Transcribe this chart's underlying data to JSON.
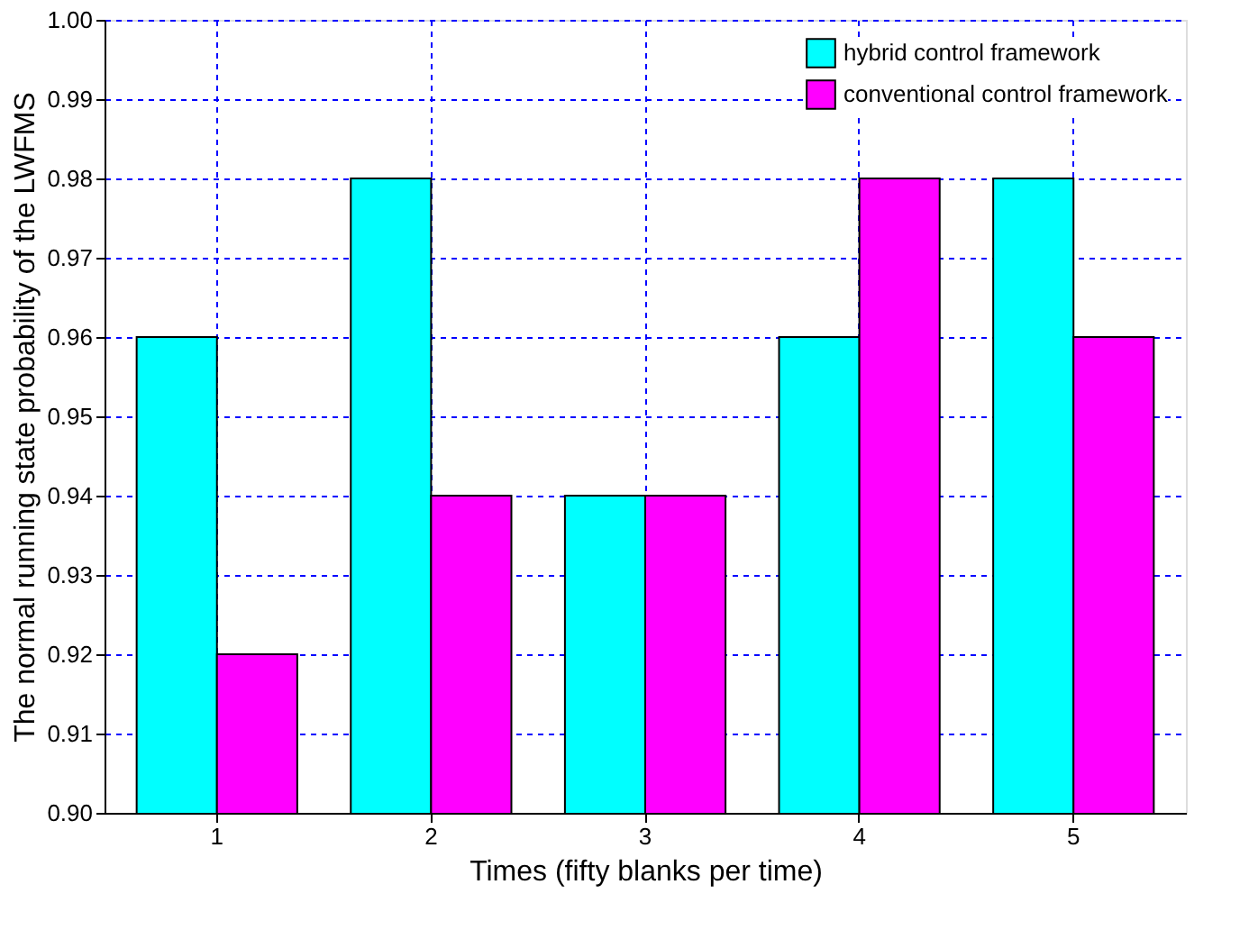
{
  "chart_data": {
    "type": "bar",
    "xlabel": "Times (fifty blanks per time)",
    "ylabel": "The normal running state probability of the LWFMS",
    "categories": [
      "1",
      "2",
      "3",
      "4",
      "5"
    ],
    "series": [
      {
        "name": "hybrid control framework",
        "color": "#00ffff",
        "values": [
          0.96,
          0.98,
          0.94,
          0.96,
          0.98
        ]
      },
      {
        "name": "conventional control framework",
        "color": "#ff00ff",
        "values": [
          0.92,
          0.94,
          0.94,
          0.98,
          0.96
        ]
      }
    ],
    "ylim": [
      0.9,
      1.0
    ],
    "yticks": [
      {
        "value": 0.9,
        "label": "0.90"
      },
      0.91,
      0.92,
      0.93,
      0.94,
      0.95,
      0.96,
      0.97,
      0.98,
      0.99,
      {
        "value": 1.0,
        "label": "1.00"
      }
    ],
    "grid": true,
    "legend": "top right"
  }
}
